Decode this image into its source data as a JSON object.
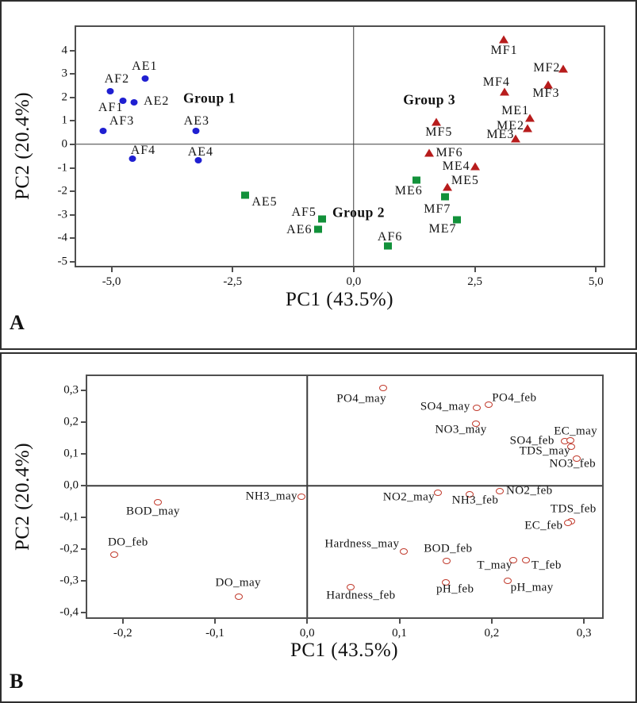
{
  "figure": {
    "description": "Two-panel PCA figure: panel A score plot of sampling sites, panel B loading plot of water-quality variables",
    "colors": {
      "group1_blue": "#1f1fd1",
      "group2_green": "#12913a",
      "group3_red": "#b71c1c",
      "loading_ring_red": "#c0392b",
      "frame_gray": "#4f4f4f",
      "text_black": "#141414"
    }
  },
  "chart_data": [
    {
      "panel": "A",
      "panel_letter": "A",
      "type": "scatter",
      "xlabel": "PC1 (43.5%)",
      "ylabel": "PC2 (20.4%)",
      "xlim": [
        -5.73,
        5.16
      ],
      "ylim": [
        -5.17,
        5.0
      ],
      "grid": false,
      "zero_lines": true,
      "xticks": [
        {
          "v": -5,
          "label": "-5,0"
        },
        {
          "v": -2.5,
          "label": "-2,5"
        },
        {
          "v": 0,
          "label": "0,0"
        },
        {
          "v": 2.5,
          "label": "2,5"
        },
        {
          "v": 5,
          "label": "5,0"
        }
      ],
      "yticks": [
        {
          "v": 4,
          "label": "4"
        },
        {
          "v": 3,
          "label": "3"
        },
        {
          "v": 2,
          "label": "2"
        },
        {
          "v": 1,
          "label": "1"
        },
        {
          "v": 0,
          "label": "0"
        },
        {
          "v": -1,
          "label": "-1"
        },
        {
          "v": -2,
          "label": "-2"
        },
        {
          "v": -3,
          "label": "-3"
        },
        {
          "v": -4,
          "label": "-4"
        },
        {
          "v": -5,
          "label": "-5"
        }
      ],
      "annotations": [
        {
          "text": "Group 1",
          "x": -2.98,
          "y": 1.97
        },
        {
          "text": "Group 2",
          "x": 0.1,
          "y": -2.91
        },
        {
          "text": "Group 3",
          "x": 1.56,
          "y": 1.9
        }
      ],
      "series": [
        {
          "name": "Group 1 sites",
          "marker": "m-dot",
          "color": "#1f1fd1",
          "points": [
            {
              "label": "AE1",
              "x": -4.3,
              "y": 2.8,
              "dx": -1,
              "dy": -15
            },
            {
              "label": "AF2",
              "x": -5.02,
              "y": 2.27,
              "dx": 8,
              "dy": -15
            },
            {
              "label": "AF1",
              "x": -4.77,
              "y": 1.87,
              "dx": -15,
              "dy": 9
            },
            {
              "label": "AE2",
              "x": -4.53,
              "y": 1.8,
              "dx": 28,
              "dy": -1
            },
            {
              "label": "AF3",
              "x": -5.18,
              "y": 0.57,
              "dx": 24,
              "dy": -12
            },
            {
              "label": "AE3",
              "x": -3.26,
              "y": 0.57,
              "dx": 1,
              "dy": -12
            },
            {
              "label": "AF4",
              "x": -4.56,
              "y": -0.6,
              "dx": 13,
              "dy": -10
            },
            {
              "label": "AE4",
              "x": -3.21,
              "y": -0.67,
              "dx": 3,
              "dy": -10
            }
          ]
        },
        {
          "name": "Group 2 sites",
          "marker": "m-square",
          "color": "#12913a",
          "points": [
            {
              "label": "AE5",
              "x": -2.25,
              "y": -2.17,
              "dx": 25,
              "dy": 9
            },
            {
              "label": "AF5",
              "x": -0.65,
              "y": -3.17,
              "dx": -23,
              "dy": -8
            },
            {
              "label": "AE6",
              "x": -0.73,
              "y": -3.63,
              "dx": -24,
              "dy": 1
            },
            {
              "label": "AF6",
              "x": 0.7,
              "y": -4.33,
              "dx": 3,
              "dy": -11
            },
            {
              "label": "ME6",
              "x": 1.3,
              "y": -1.53,
              "dx": -10,
              "dy": 14
            },
            {
              "label": "MF7",
              "x": 1.89,
              "y": -2.23,
              "dx": -10,
              "dy": 16
            },
            {
              "label": "ME7",
              "x": 2.13,
              "y": -3.2,
              "dx": -18,
              "dy": 12
            }
          ]
        },
        {
          "name": "Group 3 sites",
          "marker": "m-triangle",
          "color": "#b71c1c",
          "points": [
            {
              "label": "MF1",
              "x": 3.09,
              "y": 4.45,
              "dx": 1,
              "dy": 14
            },
            {
              "label": "MF2",
              "x": 4.33,
              "y": 3.2,
              "dx": -21,
              "dy": -1
            },
            {
              "label": "MF3",
              "x": 4.02,
              "y": 2.53,
              "dx": -3,
              "dy": 11
            },
            {
              "label": "MF4",
              "x": 3.11,
              "y": 2.23,
              "dx": -10,
              "dy": -12
            },
            {
              "label": "MF5",
              "x": 1.71,
              "y": 0.93,
              "dx": 3,
              "dy": 13
            },
            {
              "label": "MF6",
              "x": 1.55,
              "y": -0.37,
              "dx": 26,
              "dy": 0
            },
            {
              "label": "ME1",
              "x": 3.63,
              "y": 1.1,
              "dx": -18,
              "dy": -9
            },
            {
              "label": "ME2",
              "x": 3.58,
              "y": 0.67,
              "dx": -21,
              "dy": -3
            },
            {
              "label": "ME3",
              "x": 3.34,
              "y": 0.23,
              "dx": -19,
              "dy": -5
            },
            {
              "label": "ME4",
              "x": 2.51,
              "y": -0.93,
              "dx": -24,
              "dy": 0
            },
            {
              "label": "ME5",
              "x": 1.94,
              "y": -1.83,
              "dx": 22,
              "dy": -8
            }
          ]
        }
      ]
    },
    {
      "panel": "B",
      "panel_letter": "B",
      "type": "scatter",
      "xlabel": "PC1 (43.5%)",
      "ylabel": "PC2 (20.4%)",
      "xlim": [
        -0.2385,
        0.3197
      ],
      "ylim": [
        -0.414,
        0.345
      ],
      "grid": false,
      "zero_lines": true,
      "xticks": [
        {
          "v": -0.2,
          "label": "-0,2"
        },
        {
          "v": -0.1,
          "label": "-0,1"
        },
        {
          "v": 0,
          "label": "0,0"
        },
        {
          "v": 0.1,
          "label": "0,1"
        },
        {
          "v": 0.2,
          "label": "0,2"
        },
        {
          "v": 0.3,
          "label": "0,3"
        }
      ],
      "yticks": [
        {
          "v": 0.3,
          "label": "0,3"
        },
        {
          "v": 0.2,
          "label": "0,2"
        },
        {
          "v": 0.1,
          "label": "0,1"
        },
        {
          "v": 0,
          "label": "0,0"
        },
        {
          "v": -0.1,
          "label": "-0,1"
        },
        {
          "v": -0.2,
          "label": "-0,2"
        },
        {
          "v": -0.3,
          "label": "-0,3"
        },
        {
          "v": -0.4,
          "label": "-0,4"
        }
      ],
      "annotations": [],
      "series": [
        {
          "name": "variable loadings",
          "marker": "m-open",
          "color": "#c0392b",
          "points": [
            {
              "label": "PO4_may",
              "x": 0.082,
              "y": 0.308,
              "dx": -27,
              "dy": 14
            },
            {
              "label": "SO4_may",
              "x": 0.184,
              "y": 0.244,
              "dx": -40,
              "dy": -1
            },
            {
              "label": "PO4_feb",
              "x": 0.197,
              "y": 0.256,
              "dx": 32,
              "dy": -8
            },
            {
              "label": "NO3_may",
              "x": 0.183,
              "y": 0.195,
              "dx": -19,
              "dy": 8
            },
            {
              "label": "SO4_feb",
              "x": 0.279,
              "y": 0.14,
              "dx": -41,
              "dy": 0
            },
            {
              "label": "EC_may",
              "x": 0.285,
              "y": 0.143,
              "dx": 7,
              "dy": -11
            },
            {
              "label": "TDS_may",
              "x": 0.286,
              "y": 0.123,
              "dx": -33,
              "dy": 6
            },
            {
              "label": "NO3_feb",
              "x": 0.292,
              "y": 0.086,
              "dx": -5,
              "dy": 7
            },
            {
              "label": "NO2_may",
              "x": 0.142,
              "y": -0.022,
              "dx": -37,
              "dy": 6
            },
            {
              "label": "NH3_feb",
              "x": 0.176,
              "y": -0.027,
              "dx": 7,
              "dy": 8
            },
            {
              "label": "NO2_feb",
              "x": 0.209,
              "y": -0.017,
              "dx": 37,
              "dy": 0
            },
            {
              "label": "TDS_feb",
              "x": 0.286,
              "y": -0.111,
              "dx": 3,
              "dy": -15
            },
            {
              "label": "EC_feb",
              "x": 0.283,
              "y": -0.118,
              "dx": -31,
              "dy": 4
            },
            {
              "label": "Hardness_may",
              "x": 0.105,
              "y": -0.207,
              "dx": -53,
              "dy": -9
            },
            {
              "label": "BOD_feb",
              "x": 0.151,
              "y": -0.236,
              "dx": 2,
              "dy": -15
            },
            {
              "label": "T_may",
              "x": 0.223,
              "y": -0.234,
              "dx": -23,
              "dy": 7
            },
            {
              "label": "T_feb",
              "x": 0.237,
              "y": -0.234,
              "dx": 26,
              "dy": 7
            },
            {
              "label": "pH_may",
              "x": 0.217,
              "y": -0.3,
              "dx": 31,
              "dy": 9
            },
            {
              "label": "pH_feb",
              "x": 0.15,
              "y": -0.305,
              "dx": 12,
              "dy": 9
            },
            {
              "label": "Hardness_feb",
              "x": 0.047,
              "y": -0.32,
              "dx": 13,
              "dy": 11
            },
            {
              "label": "BOD_may",
              "x": -0.162,
              "y": -0.052,
              "dx": -6,
              "dy": 12
            },
            {
              "label": "DO_feb",
              "x": -0.209,
              "y": -0.217,
              "dx": 17,
              "dy": -15
            },
            {
              "label": "DO_may",
              "x": -0.074,
              "y": -0.35,
              "dx": -1,
              "dy": -17
            },
            {
              "label": "NH3_may",
              "x": -0.006,
              "y": -0.034,
              "dx": -38,
              "dy": 0
            }
          ]
        }
      ]
    }
  ]
}
